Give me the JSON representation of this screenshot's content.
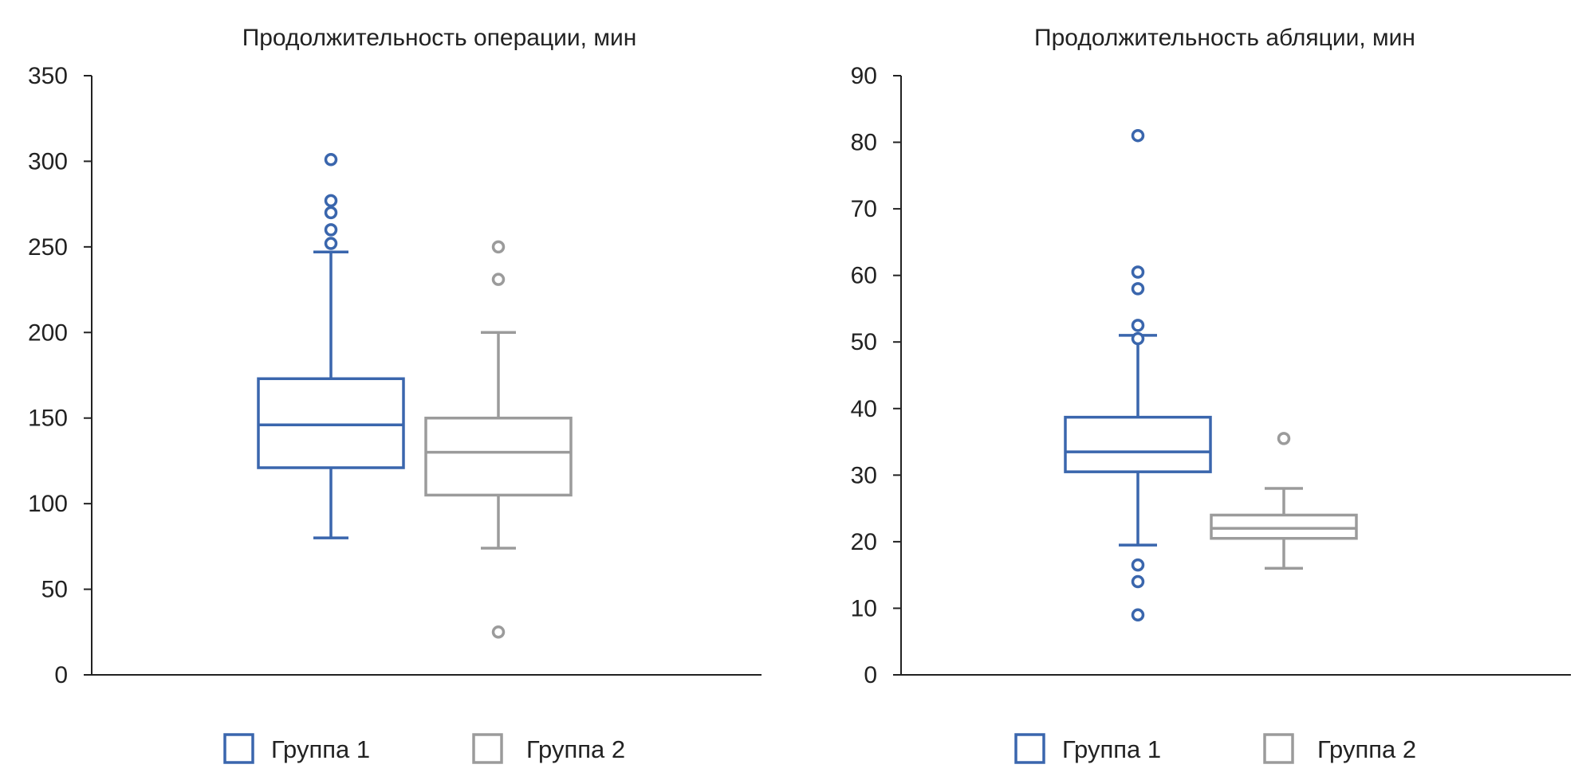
{
  "chart_data": [
    {
      "type": "box",
      "title": "Продолжительность операции, мин",
      "ylim": [
        0,
        350
      ],
      "yticks": [
        0,
        50,
        100,
        150,
        200,
        250,
        300,
        350
      ],
      "series": [
        {
          "name": "Группа 1",
          "color": "#3a66ad",
          "whisker_low": 80,
          "q1": 121,
          "median": 146,
          "q3": 173,
          "whisker_high": 247,
          "outliers": [
            252,
            260,
            270,
            277,
            301
          ]
        },
        {
          "name": "Группа 2",
          "color": "#9b9b9b",
          "whisker_low": 74,
          "q1": 105,
          "median": 130,
          "q3": 150,
          "whisker_high": 200,
          "outliers": [
            25,
            231,
            250
          ]
        }
      ],
      "legend": [
        "Группа 1",
        "Группа 2"
      ],
      "legend_position": "bottom",
      "grid": false
    },
    {
      "type": "box",
      "title": "Продолжительность абляции, мин",
      "ylim": [
        0,
        90
      ],
      "yticks": [
        0,
        10,
        20,
        30,
        40,
        50,
        60,
        70,
        80,
        90
      ],
      "series": [
        {
          "name": "Группа 1",
          "color": "#3a66ad",
          "whisker_low": 19.5,
          "q1": 30.5,
          "median": 33.5,
          "q3": 38.7,
          "whisker_high": 51,
          "outliers": [
            9,
            14,
            16.5,
            50.5,
            52.5,
            58,
            60.5,
            81
          ]
        },
        {
          "name": "Группа 2",
          "color": "#9b9b9b",
          "whisker_low": 16,
          "q1": 20.5,
          "median": 22,
          "q3": 24,
          "whisker_high": 28,
          "outliers": [
            35.5
          ]
        }
      ],
      "legend": [
        "Группа 1",
        "Группа 2"
      ],
      "legend_position": "bottom",
      "grid": false
    }
  ]
}
